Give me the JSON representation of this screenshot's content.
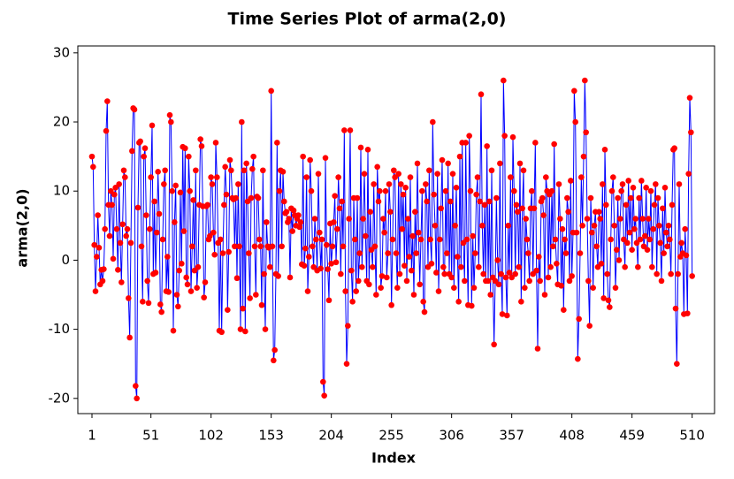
{
  "chart_data": {
    "type": "line",
    "title": "Time Series Plot of arma(2,0)",
    "x_label": "Index",
    "y_label": "arma(2,0)",
    "line_color": "#0000ff",
    "marker_color": "#ff0000",
    "xlim": [
      -11,
      529
    ],
    "xticks": [
      1,
      51,
      102,
      153,
      204,
      255,
      306,
      357,
      408,
      459,
      510
    ],
    "ylim": [
      -22.2,
      31
    ],
    "yticks": [
      -20,
      -10,
      0,
      10,
      20,
      30
    ],
    "values": [
      15,
      13.5,
      2.2,
      -4.5,
      0.5,
      6.5,
      1.8,
      -3.5,
      -1.4,
      -3,
      -1.3,
      4.5,
      18.7,
      23,
      8,
      3.5,
      10,
      8,
      0.2,
      9.5,
      10.5,
      4.5,
      -1.4,
      11,
      2.5,
      -3.2,
      5.2,
      13,
      12,
      3.5,
      4.5,
      -5.5,
      -11.2,
      2.5,
      15.8,
      22,
      21.8,
      -18.2,
      -20,
      7.6,
      17,
      17.2,
      2,
      -6,
      15,
      16.2,
      6.5,
      -3,
      -6.2,
      4.5,
      12,
      19.5,
      -2,
      8.5,
      -1.8,
      4,
      12.8,
      6.7,
      -6.4,
      -7.5,
      3,
      11,
      13,
      -4.5,
      0.5,
      -4.6,
      21,
      20,
      10,
      -10.2,
      5.5,
      10.8,
      -5,
      -6.7,
      -1.5,
      9.8,
      -0.5,
      16.4,
      4.2,
      16.2,
      -2.5,
      -3.5,
      15,
      10,
      -4.5,
      2,
      8.7,
      -1.5,
      13,
      -4,
      -1,
      8,
      17.5,
      16.5,
      7.8,
      -5.4,
      -3.2,
      7.8,
      8,
      3,
      3.5,
      12,
      11,
      4,
      0.8,
      17,
      12,
      2.5,
      -10.2,
      3,
      -10.4,
      1,
      8,
      13.5,
      9.5,
      -7.2,
      1.2,
      14.5,
      13,
      9,
      8.8,
      2,
      9,
      -2.6,
      11,
      2,
      -10,
      20,
      -7,
      13,
      -10.3,
      14,
      8.5,
      1,
      -5.5,
      9,
      13.2,
      15,
      2,
      -5,
      9.2,
      9,
      3,
      2,
      -6.5,
      13,
      -2,
      -10,
      5.5,
      2,
      1.8,
      -1,
      24.5,
      2,
      -14.5,
      -13,
      -2,
      17,
      -2.3,
      10,
      13,
      2,
      12.8,
      8.5,
      6.8,
      7,
      5.5,
      6,
      -2.5,
      7.5,
      4.2,
      7.2,
      6.5,
      5,
      6,
      6.5,
      4.8,
      5.5,
      -0.6,
      15,
      -0.8,
      1.7,
      12,
      -4.5,
      0.5,
      14.5,
      10,
      2,
      -1,
      6,
      3,
      -1.5,
      12.5,
      4,
      -1.2,
      3,
      -17.6,
      -19.6,
      14.8,
      2.2,
      -1.3,
      -5.8,
      5.3,
      -0.5,
      2,
      5.5,
      9.3,
      -0.3,
      4.5,
      12,
      7.5,
      -2,
      8.5,
      2,
      18.8,
      -4.5,
      -15,
      -9.5,
      6,
      18.8,
      -1.5,
      -6,
      9,
      3,
      -4.5,
      9,
      -3,
      1,
      16.3,
      -1,
      6,
      12.5,
      3.5,
      -3,
      16,
      -3.5,
      7,
      1.5,
      -1,
      11,
      2,
      -5,
      13.5,
      8.5,
      10,
      -4,
      -2.3,
      6,
      4,
      10,
      -2.5,
      1,
      11,
      7,
      -6.5,
      3,
      13,
      12,
      1,
      -4,
      12.5,
      -2,
      11,
      4.5,
      9.5,
      -0.8,
      10.5,
      -3,
      6,
      0.5,
      12,
      -1.5,
      3.5,
      -5,
      7,
      1,
      14,
      4,
      -3.5,
      3,
      10,
      -6,
      -7.5,
      11,
      8.5,
      -1,
      13,
      3,
      -0.5,
      20,
      9.5,
      5,
      -1.8,
      12.5,
      -4.5,
      3,
      7.5,
      14.5,
      -1,
      -2,
      10,
      1,
      14,
      -2,
      8.5,
      -2.5,
      12.5,
      -4,
      5,
      10.5,
      0.5,
      -6,
      15,
      -1,
      17,
      2.5,
      -3,
      17,
      3,
      -6.5,
      18,
      10,
      -6.6,
      3.5,
      -4,
      1,
      9.5,
      12,
      -1,
      8.5,
      24,
      5,
      -2,
      8,
      -3,
      16.5,
      -3,
      8.5,
      -5,
      13,
      -2.5,
      -12.2,
      -3,
      9,
      0,
      -3.5,
      14,
      -2,
      -7.8,
      26,
      18,
      -2.5,
      -8,
      5,
      -1.8,
      12,
      -2.5,
      17.8,
      10,
      -2,
      8,
      7,
      -1,
      14,
      -6,
      7.5,
      13,
      -4,
      6,
      3,
      1,
      -3,
      7.5,
      10,
      -2,
      7.5,
      17,
      -1.5,
      -12.8,
      0.5,
      -3,
      8.5,
      9,
      6.5,
      -5,
      12,
      10,
      -2.5,
      9.5,
      -1,
      10,
      2,
      16.8,
      3,
      -0.5,
      -3.5,
      11,
      6,
      -3.7,
      4.5,
      -7.2,
      3,
      1,
      9,
      7,
      -3,
      11.5,
      -2.3,
      4,
      24.5,
      20,
      4,
      -14.3,
      -8.5,
      1,
      12,
      5,
      15,
      26,
      18.5,
      6,
      -3,
      -9.5,
      9,
      4,
      -4,
      5,
      7,
      2,
      -1,
      7,
      6,
      -0.5,
      11,
      -5.5,
      16,
      8,
      -2,
      -5.8,
      -6.8,
      3,
      10,
      12,
      5,
      -4,
      1.5,
      9,
      0,
      6,
      10,
      11,
      3,
      -1,
      8,
      2.5,
      11.5,
      4,
      9,
      1.5,
      10.5,
      4.5,
      6,
      2.5,
      -1,
      9,
      3,
      11.5,
      6,
      2,
      3.5,
      10.5,
      1.5,
      6,
      3,
      10,
      -1,
      4.5,
      8,
      11,
      -2,
      9,
      5,
      2.5,
      -3,
      7.5,
      1,
      10.5,
      4,
      2,
      5,
      3,
      -2,
      8,
      16,
      16.2,
      -7,
      -15,
      -2,
      11,
      0.5,
      2.5,
      1,
      -7.8,
      4.5,
      0.7,
      -7.7,
      12.5,
      23.5,
      18.5,
      -2.3
    ]
  }
}
